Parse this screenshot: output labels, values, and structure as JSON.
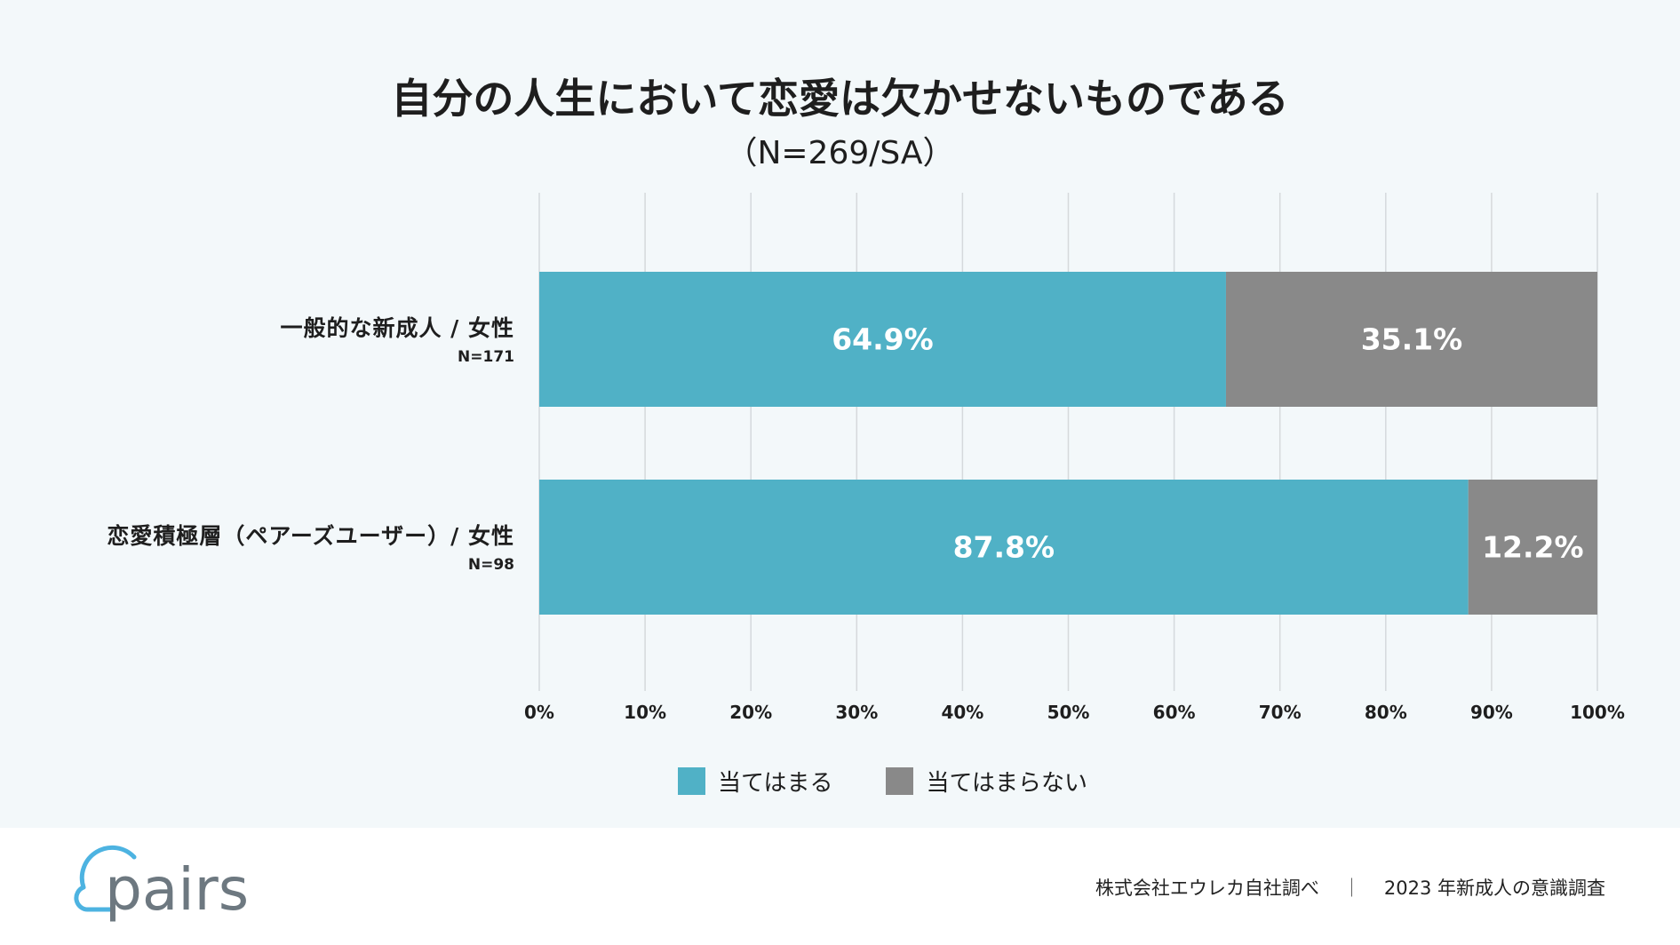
{
  "chart_data": {
    "type": "bar",
    "orientation": "horizontal",
    "stacked": true,
    "title": "自分の人生において恋愛は欠かせないものである",
    "subtitle": "（N=269/SA）",
    "categories": [
      "一般的な新成人 / 女性",
      "恋愛積極層（ペアーズユーザー）/ 女性"
    ],
    "category_sample_sizes": [
      "N=171",
      "N=98"
    ],
    "series": [
      {
        "name": "当てはまる",
        "values": [
          64.9,
          87.8
        ],
        "labels": [
          "64.9%",
          "87.8%"
        ],
        "color": "#50b1c6"
      },
      {
        "name": "当てはまらない",
        "values": [
          35.1,
          12.2
        ],
        "labels": [
          "35.1%",
          "12.2%"
        ],
        "color": "#898989"
      }
    ],
    "xlim": [
      0,
      100
    ],
    "xticks": [
      0,
      10,
      20,
      30,
      40,
      50,
      60,
      70,
      80,
      90,
      100
    ],
    "xtick_labels": [
      "0%",
      "10%",
      "20%",
      "30%",
      "40%",
      "50%",
      "60%",
      "70%",
      "80%",
      "90%",
      "100%"
    ],
    "grid": true,
    "legend_position": "bottom"
  },
  "footer": {
    "logo_text": "pairs",
    "logo_icon": "cloud-icon",
    "logo_color": "#4db3e1",
    "source": "株式会社エウレカ自社調べ",
    "separator": "｜",
    "survey": "2023 年新成人の意識調査"
  }
}
